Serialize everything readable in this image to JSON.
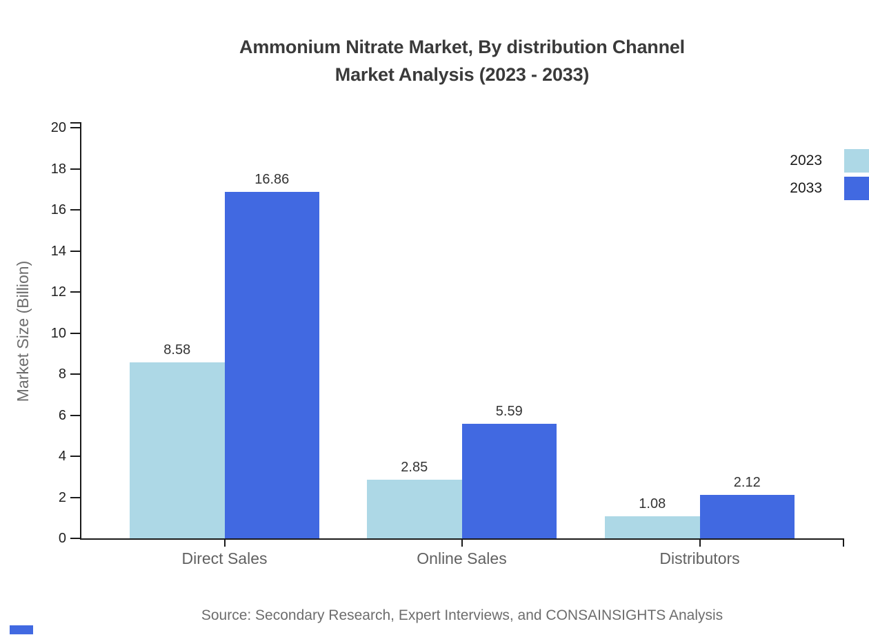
{
  "title": {
    "line1": "Ammonium Nitrate Market, By distribution Channel",
    "line2": "Market Analysis (2023 - 2033)"
  },
  "legend": {
    "position": "top-right",
    "items": [
      {
        "label": "2023",
        "color": "#ADD8E6"
      },
      {
        "label": "2033",
        "color": "#4169E1"
      }
    ]
  },
  "source_note": "Source: Secondary Research, Expert Interviews, and CONSAINSIGHTS Analysis",
  "chart_data": {
    "type": "bar",
    "title": "Ammonium Nitrate Market, By distribution Channel Market Analysis (2023 - 2033)",
    "categories": [
      "Direct Sales",
      "Online Sales",
      "Distributors"
    ],
    "series": [
      {
        "name": "2023",
        "color": "#ADD8E6",
        "values": [
          8.58,
          2.85,
          1.08
        ]
      },
      {
        "name": "2033",
        "color": "#4169E1",
        "values": [
          16.86,
          5.59,
          2.12
        ]
      }
    ],
    "xlabel": "",
    "ylabel": "Market Size (Billion)",
    "ylim": [
      0,
      20
    ],
    "yticks": [
      0,
      2,
      4,
      6,
      8,
      10,
      12,
      14,
      16,
      18,
      20
    ],
    "grid": false,
    "legend_position": "top-right",
    "value_labels": true
  },
  "colors": {
    "axis": "#1a1a1a",
    "title_text": "#3a3a3a",
    "tick_text": "#1f1f1f",
    "value_text": "#333333",
    "category_text": "#616161",
    "muted_text": "#6d6d6d"
  }
}
